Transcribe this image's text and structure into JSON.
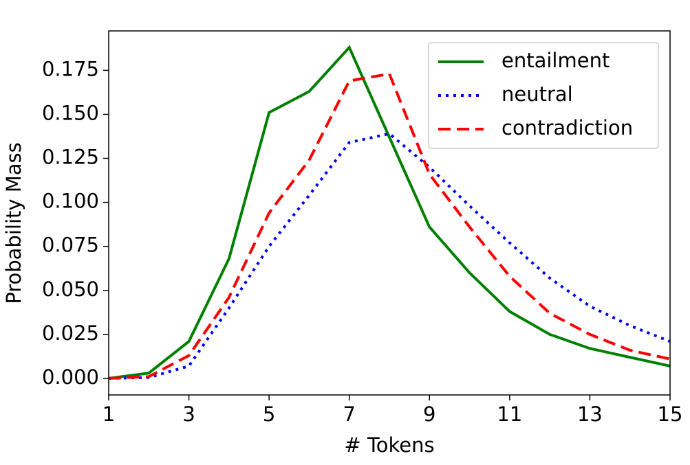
{
  "chart_data": {
    "type": "line",
    "xlabel": "# Tokens",
    "ylabel": "Probability Mass",
    "x": [
      1,
      2,
      3,
      4,
      5,
      6,
      7,
      8,
      9,
      10,
      11,
      12,
      13,
      14,
      15
    ],
    "series": [
      {
        "name": "entailment",
        "color": "#008000",
        "linestyle": "solid",
        "values": [
          0,
          0.003,
          0.021,
          0.068,
          0.151,
          0.163,
          0.188,
          0.137,
          0.086,
          0.06,
          0.038,
          0.025,
          0.017,
          0.012,
          0.007
        ]
      },
      {
        "name": "neutral",
        "color": "#0000ff",
        "linestyle": "dotted",
        "values": [
          0,
          0.0005,
          0.007,
          0.04,
          0.075,
          0.104,
          0.134,
          0.139,
          0.12,
          0.098,
          0.077,
          0.057,
          0.041,
          0.03,
          0.021
        ]
      },
      {
        "name": "contradiction",
        "color": "#ff0000",
        "linestyle": "dashed",
        "values": [
          0,
          0.001,
          0.013,
          0.046,
          0.094,
          0.124,
          0.169,
          0.173,
          0.116,
          0.086,
          0.058,
          0.037,
          0.025,
          0.016,
          0.011
        ]
      }
    ],
    "xlim": [
      1,
      15
    ],
    "xticks": [
      1,
      3,
      5,
      7,
      9,
      11,
      13,
      15
    ],
    "ylim": [
      -0.0094,
      0.1974
    ],
    "yticks": [
      {
        "value": 0,
        "label": "0.000"
      },
      {
        "value": 0.025,
        "label": "0.025"
      },
      {
        "value": 0.05,
        "label": "0.050"
      },
      {
        "value": 0.075,
        "label": "0.075"
      },
      {
        "value": 0.1,
        "label": "0.100"
      },
      {
        "value": 0.125,
        "label": "0.125"
      },
      {
        "value": 0.15,
        "label": "0.150"
      },
      {
        "value": 0.175,
        "label": "0.175"
      }
    ],
    "legend": "upper right"
  }
}
